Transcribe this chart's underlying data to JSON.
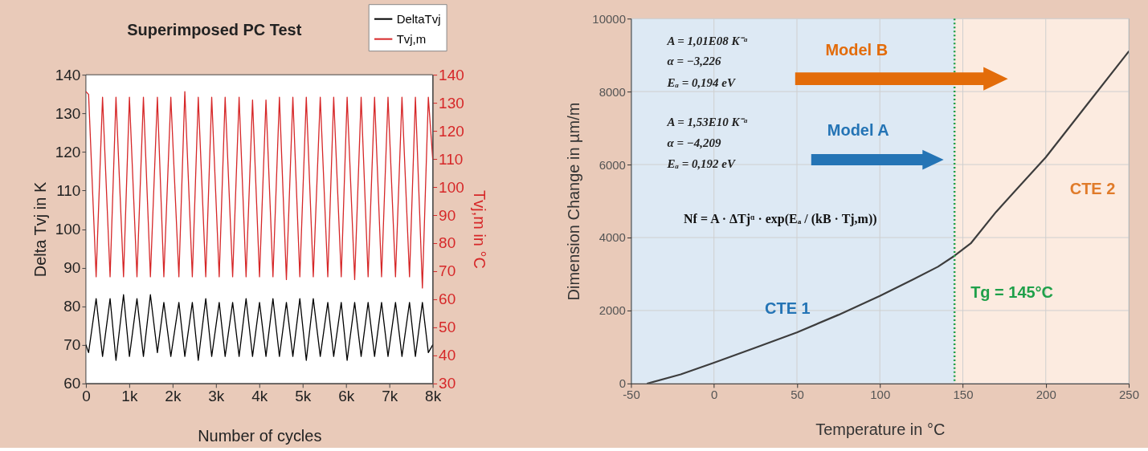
{
  "chart_data": [
    {
      "type": "line",
      "title": "Superimposed PC Test",
      "xlabel": "Number of cycles",
      "ylabel": "Delta Tvj in K",
      "y2label": "Tvj,m in °C",
      "x": [
        0,
        62,
        236,
        384,
        558,
        694,
        868,
        1004,
        1178,
        1327,
        1488,
        1649,
        1798,
        1959,
        2145,
        2282,
        2455,
        2592,
        2765,
        2902,
        3075,
        3212,
        3385,
        3534,
        3695,
        3844,
        4005,
        4154,
        4315,
        4464,
        4625,
        4774,
        4935,
        5084,
        5245,
        5406,
        5580,
        5716,
        5890,
        6026,
        6200,
        6349,
        6510,
        6659,
        6820,
        6969,
        7142,
        7291,
        7465,
        7601,
        7762,
        7899,
        8000
      ],
      "series": [
        {
          "name": "DeltaTvj",
          "color": "#000000",
          "values": [
            70,
            68,
            82,
            67,
            82,
            66,
            83,
            67,
            82,
            67,
            83,
            68,
            81,
            67,
            81,
            67,
            81,
            66,
            82,
            67,
            81,
            67,
            81,
            67,
            82,
            67,
            81,
            67,
            82,
            67,
            81,
            67,
            82,
            66,
            82,
            67,
            81,
            67,
            81,
            66,
            81,
            67,
            81,
            67,
            81,
            67,
            81,
            67,
            81,
            67,
            81,
            68,
            70
          ]
        },
        {
          "name": "Tvj,m",
          "color": "#d62728",
          "axis": "y2",
          "values": [
            134,
            133,
            68,
            132,
            68,
            132,
            68,
            132,
            68,
            132,
            68,
            132,
            68,
            132,
            68,
            134,
            68,
            132,
            68,
            132,
            68,
            132,
            68,
            132,
            68,
            131,
            68,
            131,
            68,
            132,
            67,
            132,
            68,
            132,
            68,
            132,
            68,
            132,
            68,
            132,
            67,
            132,
            68,
            132,
            68,
            132,
            68,
            132,
            68,
            132,
            64,
            132,
            110
          ]
        }
      ],
      "xlim": [
        0,
        8000
      ],
      "xticks": [
        0,
        {
          "value": 1000,
          "label": "1k"
        },
        {
          "value": 2000,
          "label": "2k"
        },
        {
          "value": 3000,
          "label": "3k"
        },
        {
          "value": 4000,
          "label": "4k"
        },
        {
          "value": 5000,
          "label": "5k"
        },
        {
          "value": 6000,
          "label": "6k"
        },
        {
          "value": 7000,
          "label": "7k"
        },
        {
          "value": 8000,
          "label": "8k"
        }
      ],
      "ylim": [
        60,
        140
      ],
      "yticks": [
        60,
        70,
        80,
        90,
        100,
        110,
        120,
        130,
        140
      ],
      "y2lim": [
        30,
        140
      ],
      "y2ticks": [
        30,
        40,
        50,
        60,
        70,
        80,
        90,
        100,
        110,
        120,
        130,
        140
      ],
      "legend": "top right",
      "grid": false,
      "marker": "none",
      "line_style": "solid"
    },
    {
      "type": "line",
      "xlabel": "Temperature in °C",
      "ylabel": "Dimension Change in µm/m",
      "x": [
        -40,
        -20,
        0,
        25,
        50,
        75,
        100,
        120,
        135,
        145,
        155,
        170,
        200,
        225,
        250
      ],
      "series": [
        {
          "color": "#3d3d3d",
          "values": [
            0,
            250,
            570,
            980,
            1400,
            1880,
            2400,
            2850,
            3200,
            3500,
            3850,
            4700,
            6200,
            7650,
            9100
          ]
        }
      ],
      "xlim": [
        -50,
        250
      ],
      "xticks": [
        -50,
        0,
        50,
        100,
        150,
        200,
        250
      ],
      "ylim": [
        0,
        10000
      ],
      "yticks": [
        0,
        2000,
        4000,
        6000,
        8000,
        10000
      ],
      "grid": true,
      "legend": false,
      "marker": "none",
      "line_style": "solid",
      "bands": [
        {
          "axis": "x",
          "from": -50,
          "to": 145,
          "color": "#dde9f4"
        },
        {
          "axis": "x",
          "from": 145,
          "to": 250,
          "color": "#fcebe0"
        }
      ],
      "ref_lines": [
        {
          "axis": "x",
          "value": 145,
          "label": "Tg = 145°C",
          "color": "#1fa04a",
          "line_style": "dotted"
        }
      ],
      "annotations": [
        "A = 1,01E08 K⁻ᵅ",
        "α = −3,226",
        "Eₐ = 0,194 eV",
        "A = 1,53E10 K⁻ᵅ",
        "α = −4,209",
        "Eₐ = 0,192 eV",
        "Nf = A · ΔTjᵅ · exp(Eₐ / (kB · Tj,m))",
        "Model B",
        "Model A",
        "CTE 1",
        "CTE 2"
      ]
    }
  ]
}
